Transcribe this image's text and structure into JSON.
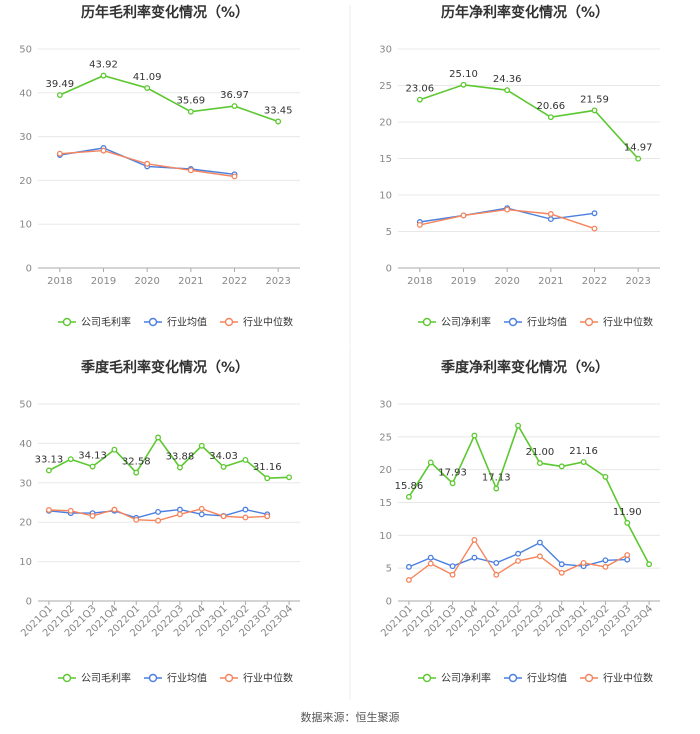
{
  "chart_data": [
    {
      "type": "line",
      "title": "历年毛利率变化情况（%）",
      "categories": [
        "2018",
        "2019",
        "2020",
        "2021",
        "2022",
        "2023"
      ],
      "ylim": [
        0,
        50
      ],
      "yticks": [
        0,
        10,
        20,
        30,
        40,
        50
      ],
      "grid": true,
      "legend": "bottom",
      "series": [
        {
          "name": "公司毛利率",
          "color": "#5cc830",
          "labeled": true,
          "values": [
            39.49,
            43.92,
            41.09,
            35.69,
            36.97,
            33.45
          ],
          "labels": [
            "39.49",
            "43.92",
            "41.09",
            "35.69",
            "36.97",
            "33.45"
          ]
        },
        {
          "name": "行业均值",
          "color": "#4a7fe0",
          "values": [
            25.8,
            27.4,
            23.2,
            22.6,
            21.4,
            null
          ]
        },
        {
          "name": "行业中位数",
          "color": "#f5845c",
          "values": [
            26.1,
            26.8,
            23.8,
            22.3,
            20.9,
            null
          ]
        }
      ]
    },
    {
      "type": "line",
      "title": "历年净利率变化情况（%）",
      "categories": [
        "2018",
        "2019",
        "2020",
        "2021",
        "2022",
        "2023"
      ],
      "ylim": [
        0,
        30
      ],
      "yticks": [
        0,
        5,
        10,
        15,
        20,
        25,
        30
      ],
      "grid": true,
      "legend": "bottom",
      "series": [
        {
          "name": "公司净利率",
          "color": "#5cc830",
          "labeled": true,
          "values": [
            23.06,
            25.1,
            24.36,
            20.66,
            21.59,
            14.97
          ],
          "labels": [
            "23.06",
            "25.10",
            "24.36",
            "20.66",
            "21.59",
            "14.97"
          ]
        },
        {
          "name": "行业均值",
          "color": "#4a7fe0",
          "values": [
            6.3,
            7.2,
            8.2,
            6.7,
            7.5,
            null
          ]
        },
        {
          "name": "行业中位数",
          "color": "#f5845c",
          "values": [
            5.9,
            7.2,
            8.0,
            7.4,
            5.4,
            null
          ]
        }
      ]
    },
    {
      "type": "line",
      "title": "季度毛利率变化情况（%）",
      "categories": [
        "2021Q1",
        "2021Q2",
        "2021Q3",
        "2021Q4",
        "2022Q1",
        "2022Q2",
        "2022Q3",
        "2022Q4",
        "2023Q1",
        "2023Q2",
        "2023Q3",
        "2023Q4"
      ],
      "ylim": [
        0,
        50
      ],
      "yticks": [
        0,
        10,
        20,
        30,
        40,
        50
      ],
      "grid": true,
      "legend": "bottom",
      "series": [
        {
          "name": "公司毛利率",
          "color": "#5cc830",
          "labeled": true,
          "values": [
            33.13,
            36.0,
            34.13,
            38.4,
            32.58,
            41.5,
            33.88,
            39.4,
            34.03,
            35.8,
            31.16,
            31.4
          ],
          "labels": [
            "33.13",
            "",
            "34.13",
            "",
            "32.58",
            "",
            "33.88",
            "",
            "34.03",
            "",
            "31.16",
            ""
          ]
        },
        {
          "name": "行业均值",
          "color": "#4a7fe0",
          "values": [
            22.9,
            22.3,
            22.3,
            22.9,
            21.1,
            22.6,
            23.2,
            22.0,
            21.6,
            23.2,
            22.0,
            null
          ]
        },
        {
          "name": "行业中位数",
          "color": "#f5845c",
          "values": [
            23.1,
            22.9,
            21.6,
            23.2,
            20.6,
            20.4,
            22.0,
            23.4,
            21.5,
            21.2,
            21.5,
            null
          ]
        }
      ]
    },
    {
      "type": "line",
      "title": "季度净利率变化情况（%）",
      "categories": [
        "2021Q1",
        "2021Q2",
        "2021Q3",
        "2021Q4",
        "2022Q1",
        "2022Q2",
        "2022Q3",
        "2022Q4",
        "2023Q1",
        "2023Q2",
        "2023Q3",
        "2023Q4"
      ],
      "ylim": [
        0,
        30
      ],
      "yticks": [
        0,
        5,
        10,
        15,
        20,
        25,
        30
      ],
      "grid": true,
      "legend": "bottom",
      "series": [
        {
          "name": "公司净利率",
          "color": "#5cc830",
          "labeled": true,
          "values": [
            15.86,
            21.1,
            17.93,
            25.2,
            17.13,
            26.7,
            21.0,
            20.5,
            21.16,
            18.9,
            11.9,
            5.6
          ],
          "labels": [
            "15.86",
            "",
            "17.93",
            "",
            "17.13",
            "",
            "21.00",
            "",
            "21.16",
            "",
            "11.90",
            ""
          ]
        },
        {
          "name": "行业均值",
          "color": "#4a7fe0",
          "values": [
            5.2,
            6.6,
            5.3,
            6.6,
            5.8,
            7.2,
            8.9,
            5.6,
            5.3,
            6.2,
            6.3,
            null
          ]
        },
        {
          "name": "行业中位数",
          "color": "#f5845c",
          "values": [
            3.2,
            5.7,
            4.0,
            9.3,
            4.0,
            6.1,
            6.8,
            4.3,
            5.8,
            5.2,
            7.0,
            null
          ]
        }
      ]
    }
  ],
  "footer": {
    "source": "数据来源：恒生聚源"
  }
}
